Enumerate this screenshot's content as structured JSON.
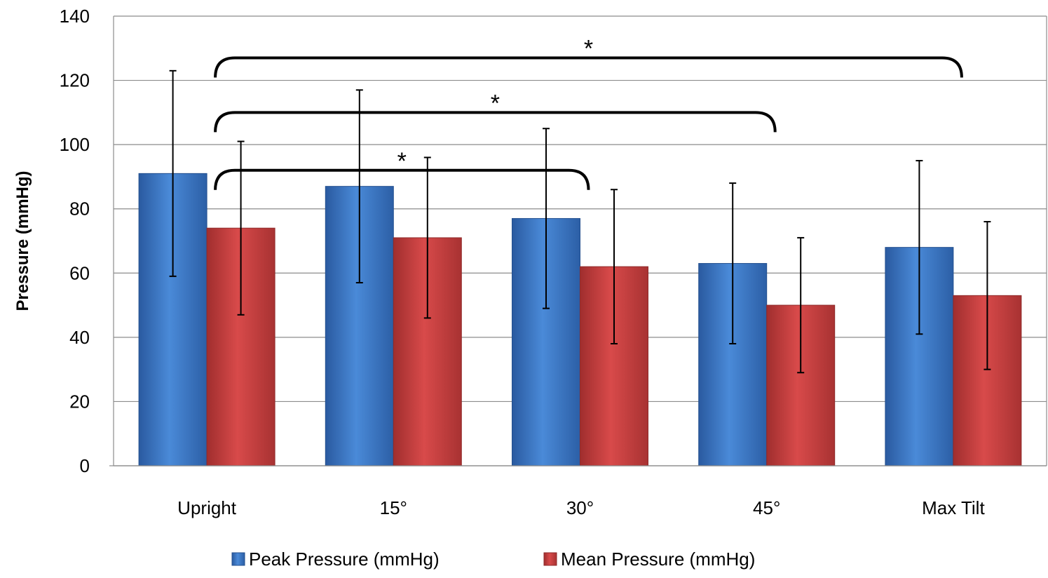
{
  "chart_data": {
    "type": "bar",
    "title": "",
    "xlabel": "",
    "ylabel": "Pressure (mmHg)",
    "ylim": [
      0,
      140
    ],
    "yticks": [
      0,
      20,
      40,
      60,
      80,
      100,
      120,
      140
    ],
    "grid": true,
    "legend_position": "bottom",
    "categories": [
      "Upright",
      "15°",
      "30°",
      "45°",
      "Max Tilt"
    ],
    "series": [
      {
        "name": "Peak Pressure (mmHg)",
        "color": "#3a75c4",
        "values": [
          91,
          87,
          77,
          63,
          68
        ],
        "error_low": [
          59,
          57,
          49,
          38,
          41
        ],
        "error_high": [
          123,
          117,
          105,
          88,
          95
        ]
      },
      {
        "name": "Mean Pressure (mmHg)",
        "color": "#c43b3b",
        "values": [
          74,
          71,
          62,
          50,
          53
        ],
        "error_low": [
          47,
          46,
          38,
          29,
          30
        ],
        "error_high": [
          101,
          96,
          86,
          71,
          76
        ]
      }
    ],
    "significance": [
      {
        "from": "Upright",
        "to": "30°",
        "label": "*",
        "level": 92
      },
      {
        "from": "Upright",
        "to": "45°",
        "label": "*",
        "level": 110
      },
      {
        "from": "Upright",
        "to": "Max Tilt",
        "label": "*",
        "level": 127
      }
    ]
  }
}
